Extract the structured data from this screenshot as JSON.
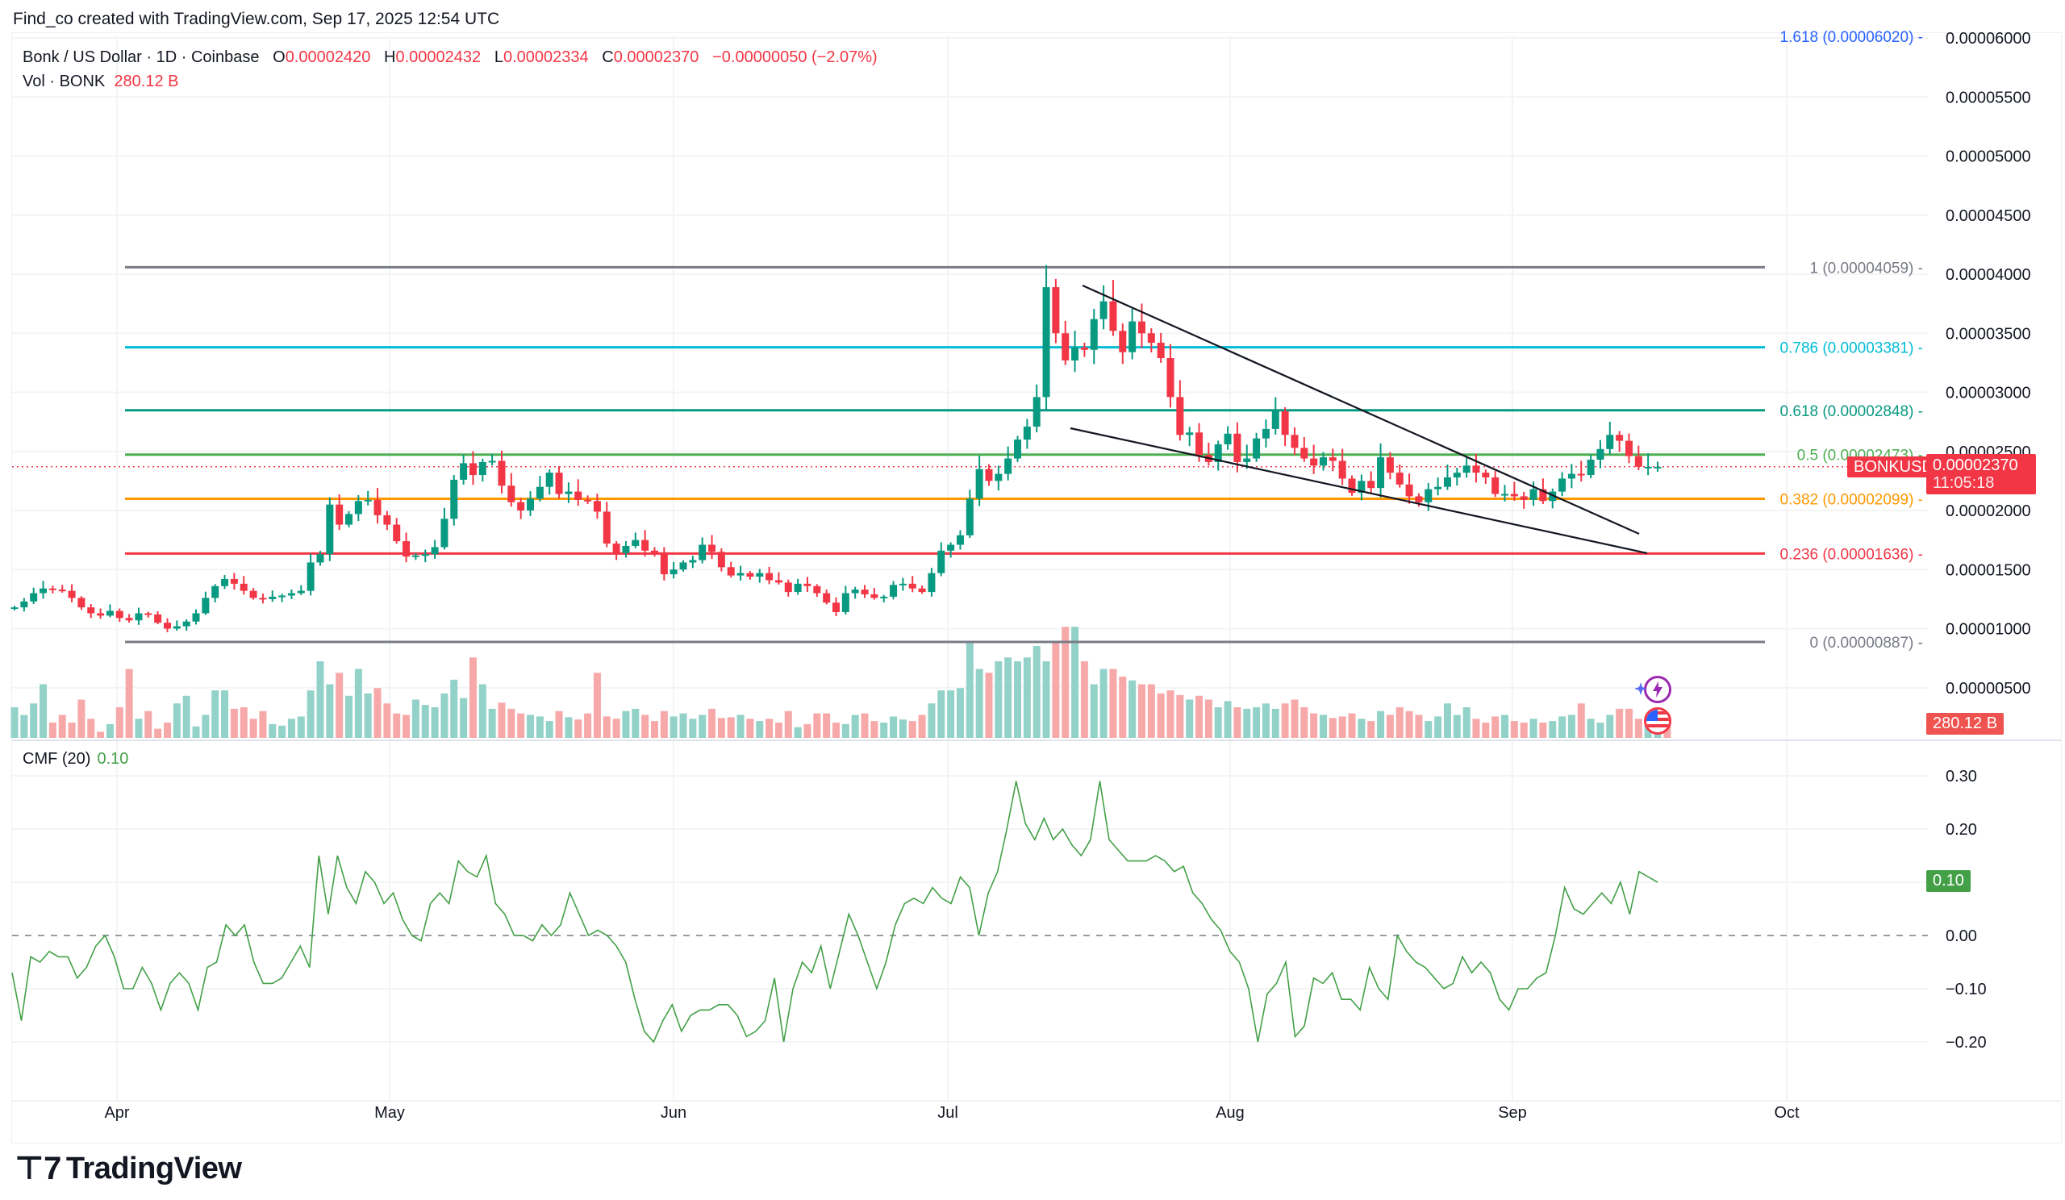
{
  "credit": "Find_co created with TradingView.com, Sep 17, 2025 12:54 UTC",
  "legend": {
    "symbol": "Bonk / US Dollar · 1D · Coinbase",
    "open_label": "O",
    "open": "0.00002420",
    "high_label": "H",
    "high": "0.00002432",
    "low_label": "L",
    "low": "0.00002334",
    "close_label": "C",
    "close": "0.00002370",
    "change": "−0.00000050 (−2.07%)",
    "vol_label": "Vol · BONK",
    "vol_value": "280.12 B"
  },
  "price_tag": {
    "symbol": "BONKUSD",
    "price": "0.00002370",
    "countdown": "11:05:18"
  },
  "volume_tag": "280.12 B",
  "cmf": {
    "label": "CMF (20)",
    "value": "0.10",
    "tag": "0.10"
  },
  "logo": "TradingView",
  "colors": {
    "up": "#089981",
    "down": "#f23645",
    "up_vol": "#93d2c9",
    "down_vol": "#f7a9a9",
    "cmf_line": "#43a047",
    "price_line": "#f23645"
  },
  "chart_data": [
    {
      "type": "candlestick",
      "title": "Bonk / US Dollar · 1D · Coinbase",
      "xlabel": "",
      "ylabel": "",
      "x_ticks": [
        "Apr",
        "May",
        "Jun",
        "Jul",
        "Aug",
        "Sep",
        "Oct"
      ],
      "y_ticks": [
        "0.00000500",
        "0.00001000",
        "0.00001500",
        "0.00002000",
        "0.00002500",
        "0.00003000",
        "0.00003500",
        "0.00004000",
        "0.00004500",
        "0.00005000",
        "0.00005500",
        "0.00006000"
      ],
      "ylim": [
        3e-06,
        6e-05
      ],
      "fib_levels": [
        {
          "level": "1.618",
          "price": "0.00006020",
          "label": "1.618 (0.00006020)",
          "color": "#2962ff"
        },
        {
          "level": "1",
          "price": "0.00004059",
          "label": "1 (0.00004059)",
          "color": "#787b86"
        },
        {
          "level": "0.786",
          "price": "0.00003381",
          "label": "0.786 (0.00003381)",
          "color": "#00bcd4"
        },
        {
          "level": "0.618",
          "price": "0.00002848",
          "label": "0.618 (0.00002848)",
          "color": "#089981"
        },
        {
          "level": "0.5",
          "price": "0.00002473",
          "label": "0.5 (0.00002473)",
          "color": "#4caf50"
        },
        {
          "level": "0.382",
          "price": "0.00002099",
          "label": "0.382 (0.00002099)",
          "color": "#ff9800"
        },
        {
          "level": "0.236",
          "price": "0.00001636",
          "label": "0.236 (0.00001636)",
          "color": "#f23645"
        },
        {
          "level": "0",
          "price": "0.00000887",
          "label": "0 (0.00000887)",
          "color": "#787b86"
        }
      ],
      "trendlines": [
        {
          "name": "wedge-upper",
          "from": [
            1342,
            354
          ],
          "to": [
            2032,
            662
          ]
        },
        {
          "name": "wedge-lower",
          "from": [
            1327,
            531
          ],
          "to": [
            2042,
            686
          ]
        }
      ],
      "current_price": 2.37e-05,
      "closes": [
        1.18,
        1.23,
        1.3,
        1.34,
        1.33,
        1.32,
        1.26,
        1.18,
        1.13,
        1.11,
        1.15,
        1.09,
        1.07,
        1.13,
        1.12,
        1.05,
        1.0,
        1.02,
        1.06,
        1.13,
        1.26,
        1.36,
        1.42,
        1.38,
        1.32,
        1.26,
        1.25,
        1.27,
        1.28,
        1.3,
        1.32,
        1.56,
        1.63,
        2.05,
        1.88,
        1.97,
        2.08,
        2.09,
        1.96,
        1.88,
        1.74,
        1.61,
        1.62,
        1.63,
        1.69,
        1.93,
        2.26,
        2.4,
        2.3,
        2.41,
        2.42,
        2.21,
        2.07,
        2.0,
        2.1,
        2.2,
        2.32,
        2.14,
        2.16,
        2.09,
        2.08,
        1.99,
        1.72,
        1.64,
        1.7,
        1.75,
        1.66,
        1.64,
        1.46,
        1.5,
        1.56,
        1.58,
        1.71,
        1.65,
        1.52,
        1.45,
        1.47,
        1.44,
        1.47,
        1.41,
        1.39,
        1.31,
        1.38,
        1.36,
        1.3,
        1.22,
        1.14,
        1.3,
        1.33,
        1.29,
        1.26,
        1.27,
        1.37,
        1.38,
        1.34,
        1.31,
        1.47,
        1.66,
        1.71,
        1.79,
        2.1,
        2.35,
        2.25,
        2.31,
        2.44,
        2.6,
        2.71,
        2.96,
        3.89,
        3.5,
        3.27,
        3.38,
        3.36,
        3.62,
        3.77,
        3.52,
        3.34,
        3.6,
        3.5,
        3.42,
        3.29,
        2.96,
        2.64,
        2.66,
        2.47,
        2.41,
        2.56,
        2.65,
        2.41,
        2.44,
        2.61,
        2.69,
        2.84,
        2.64,
        2.53,
        2.44,
        2.38,
        2.45,
        2.42,
        2.27,
        2.15,
        2.25,
        2.19,
        2.45,
        2.32,
        2.22,
        2.12,
        2.07,
        2.18,
        2.2,
        2.28,
        2.32,
        2.38,
        2.32,
        2.28,
        2.14,
        2.14,
        2.12,
        2.09,
        2.18,
        2.08,
        2.16,
        2.27,
        2.31,
        2.3,
        2.43,
        2.52,
        2.64,
        2.59,
        2.46,
        2.37,
        2.37,
        2.37
      ],
      "volume_relative": [
        0.4,
        0.3,
        0.45,
        0.7,
        0.2,
        0.3,
        0.2,
        0.5,
        0.25,
        0.08,
        0.18,
        0.4,
        0.9,
        0.25,
        0.35,
        0.12,
        0.2,
        0.45,
        0.55,
        0.15,
        0.3,
        0.62,
        0.62,
        0.38,
        0.4,
        0.25,
        0.35,
        0.18,
        0.16,
        0.25,
        0.28,
        0.62,
        1.0,
        0.7,
        0.85,
        0.55,
        0.9,
        0.58,
        0.65,
        0.45,
        0.32,
        0.3,
        0.5,
        0.43,
        0.4,
        0.58,
        0.76,
        0.52,
        1.05,
        0.7,
        0.38,
        0.46,
        0.38,
        0.32,
        0.3,
        0.28,
        0.22,
        0.35,
        0.27,
        0.24,
        0.32,
        0.85,
        0.28,
        0.25,
        0.35,
        0.38,
        0.3,
        0.22,
        0.35,
        0.28,
        0.32,
        0.25,
        0.3,
        0.38,
        0.26,
        0.27,
        0.3,
        0.25,
        0.22,
        0.25,
        0.2,
        0.35,
        0.14,
        0.18,
        0.32,
        0.32,
        0.2,
        0.18,
        0.3,
        0.32,
        0.22,
        0.2,
        0.28,
        0.24,
        0.22,
        0.3,
        0.45,
        0.62,
        0.62,
        0.65,
        1.25,
        0.9,
        0.85,
        1.0,
        1.05,
        1.0,
        1.05,
        1.2,
        1.0,
        1.25,
        1.45,
        1.45,
        1.0,
        0.7,
        0.9,
        0.9,
        0.8,
        0.75,
        0.7,
        0.7,
        0.58,
        0.62,
        0.56,
        0.5,
        0.55,
        0.5,
        0.4,
        0.48,
        0.4,
        0.38,
        0.4,
        0.45,
        0.38,
        0.45,
        0.5,
        0.4,
        0.32,
        0.3,
        0.26,
        0.28,
        0.32,
        0.25,
        0.22,
        0.35,
        0.3,
        0.4,
        0.35,
        0.3,
        0.22,
        0.28,
        0.45,
        0.3,
        0.4,
        0.25,
        0.2,
        0.28,
        0.3,
        0.22,
        0.2,
        0.25,
        0.2,
        0.22,
        0.28,
        0.3,
        0.45,
        0.25,
        0.2,
        0.3,
        0.38,
        0.38,
        0.25,
        0.28,
        0.25,
        0.3
      ],
      "series": [
        {
          "name": "BONKUSD close (×1e-5)",
          "values": "see closes"
        }
      ]
    },
    {
      "type": "line",
      "title": "CMF (20)",
      "ylim": [
        -0.25,
        0.32
      ],
      "y_ticks": [
        "0.30",
        "0.20",
        "0.00",
        "−0.10",
        "−0.20"
      ],
      "zero_line": 0.0,
      "last_value": 0.1,
      "values": [
        -0.07,
        -0.16,
        -0.04,
        -0.05,
        -0.03,
        -0.04,
        -0.04,
        -0.08,
        -0.06,
        -0.02,
        0.0,
        -0.04,
        -0.1,
        -0.1,
        -0.06,
        -0.09,
        -0.14,
        -0.09,
        -0.07,
        -0.09,
        -0.14,
        -0.06,
        -0.05,
        0.02,
        0.0,
        0.02,
        -0.05,
        -0.09,
        -0.09,
        -0.08,
        -0.05,
        -0.02,
        -0.06,
        0.15,
        0.04,
        0.15,
        0.09,
        0.06,
        0.12,
        0.1,
        0.06,
        0.08,
        0.03,
        0.0,
        -0.01,
        0.06,
        0.08,
        0.06,
        0.14,
        0.12,
        0.11,
        0.15,
        0.06,
        0.04,
        0.0,
        0.0,
        -0.01,
        0.02,
        0.0,
        0.02,
        0.08,
        0.04,
        0.0,
        0.01,
        0.0,
        -0.02,
        -0.05,
        -0.12,
        -0.18,
        -0.2,
        -0.16,
        -0.13,
        -0.18,
        -0.15,
        -0.14,
        -0.14,
        -0.13,
        -0.13,
        -0.15,
        -0.19,
        -0.18,
        -0.16,
        -0.08,
        -0.2,
        -0.1,
        -0.05,
        -0.07,
        -0.02,
        -0.1,
        -0.03,
        0.04,
        0.0,
        -0.05,
        -0.1,
        -0.05,
        0.02,
        0.06,
        0.07,
        0.06,
        0.09,
        0.07,
        0.06,
        0.11,
        0.09,
        0.0,
        0.08,
        0.12,
        0.2,
        0.29,
        0.21,
        0.18,
        0.22,
        0.18,
        0.2,
        0.17,
        0.15,
        0.18,
        0.29,
        0.18,
        0.16,
        0.14,
        0.14,
        0.14,
        0.15,
        0.14,
        0.12,
        0.13,
        0.08,
        0.06,
        0.03,
        0.01,
        -0.03,
        -0.05,
        -0.1,
        -0.2,
        -0.11,
        -0.09,
        -0.05,
        -0.19,
        -0.17,
        -0.08,
        -0.09,
        -0.07,
        -0.12,
        -0.12,
        -0.14,
        -0.06,
        -0.1,
        -0.12,
        0.0,
        -0.03,
        -0.05,
        -0.06,
        -0.08,
        -0.1,
        -0.09,
        -0.04,
        -0.07,
        -0.05,
        -0.07,
        -0.12,
        -0.14,
        -0.1,
        -0.1,
        -0.08,
        -0.07,
        0.0,
        0.09,
        0.05,
        0.04,
        0.06,
        0.08,
        0.06,
        0.1,
        0.04,
        0.12,
        0.11,
        0.1
      ]
    }
  ]
}
